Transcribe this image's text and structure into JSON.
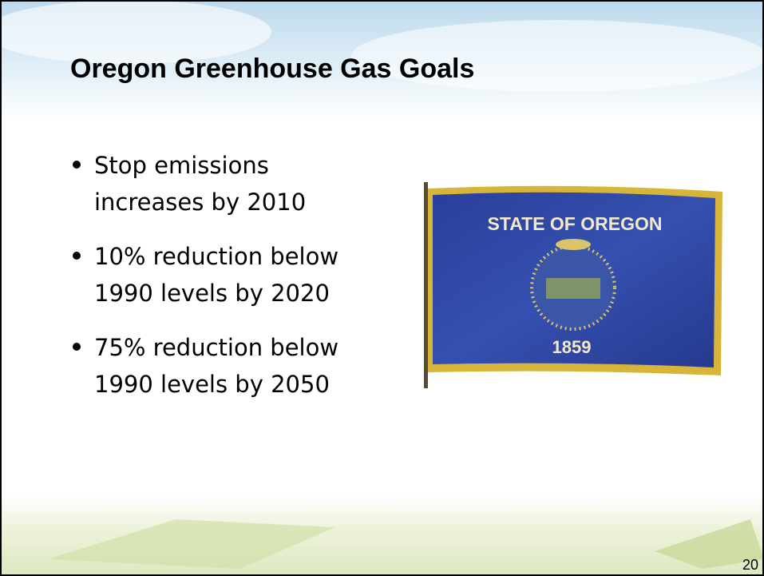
{
  "slide": {
    "title": "Oregon Greenhouse Gas Goals",
    "bullets": [
      [
        "Stop emissions",
        "increases by 2010"
      ],
      [
        "10% reduction below",
        "1990 levels by 2020"
      ],
      [
        "75% reduction below",
        "1990 levels by 2050"
      ]
    ],
    "flag": {
      "top_text": "STATE OF OREGON",
      "year": "1859"
    },
    "page_number": "20"
  }
}
